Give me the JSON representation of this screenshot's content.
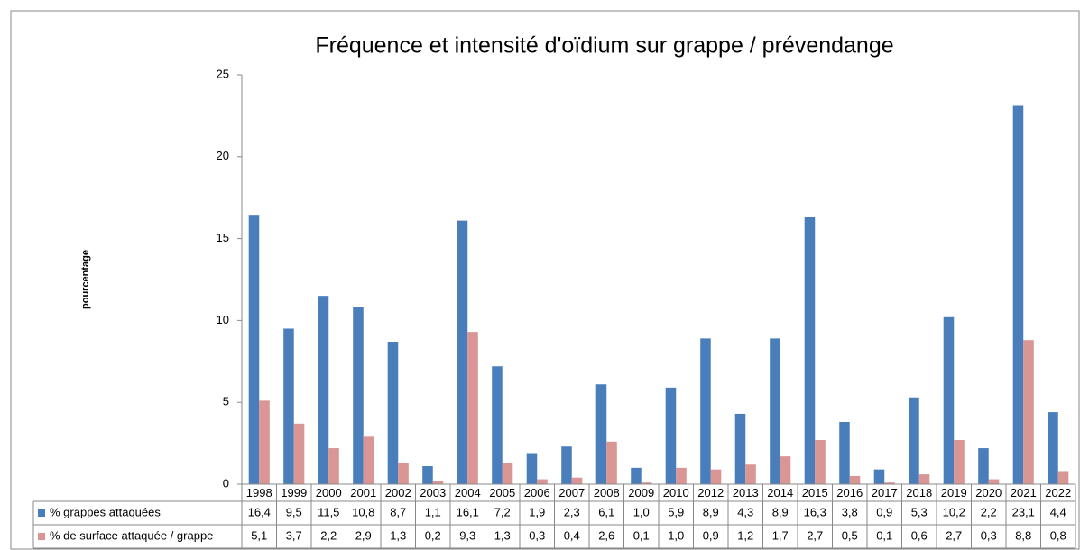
{
  "chart_data": {
    "type": "bar",
    "title": "Fréquence et intensité d'oïdium sur grappe / prévendange",
    "y_label": "pourcentage",
    "categories": [
      "1998",
      "1999",
      "2000",
      "2001",
      "2002",
      "2003",
      "2004",
      "2005",
      "2006",
      "2007",
      "2008",
      "2009",
      "2010",
      "2012",
      "2013",
      "2014",
      "2015",
      "2016",
      "2017",
      "2018",
      "2019",
      "2020",
      "2021",
      "2022"
    ],
    "series": [
      {
        "name": "% grappes attaquées",
        "color": "#4a7ebb",
        "values": [
          16.4,
          9.5,
          11.5,
          10.8,
          8.7,
          1.1,
          16.1,
          7.2,
          1.9,
          2.3,
          6.1,
          1.0,
          5.9,
          8.9,
          4.3,
          8.9,
          16.3,
          3.8,
          0.9,
          5.3,
          10.2,
          2.2,
          23.1,
          4.4
        ],
        "value_labels": [
          "16,4",
          "9,5",
          "11,5",
          "10,8",
          "8,7",
          "1,1",
          "16,1",
          "7,2",
          "1,9",
          "2,3",
          "6,1",
          "1,0",
          "5,9",
          "8,9",
          "4,3",
          "8,9",
          "16,3",
          "3,8",
          "0,9",
          "5,3",
          "10,2",
          "2,2",
          "23,1",
          "4,4"
        ]
      },
      {
        "name": "% de surface attaquée / grappe",
        "color": "#d99694",
        "values": [
          5.1,
          3.7,
          2.2,
          2.9,
          1.3,
          0.2,
          9.3,
          1.3,
          0.3,
          0.4,
          2.6,
          0.1,
          1.0,
          0.9,
          1.2,
          1.7,
          2.7,
          0.5,
          0.1,
          0.6,
          2.7,
          0.3,
          8.8,
          0.8
        ],
        "value_labels": [
          "5,1",
          "3,7",
          "2,2",
          "2,9",
          "1,3",
          "0,2",
          "9,3",
          "1,3",
          "0,3",
          "0,4",
          "2,6",
          "0,1",
          "1,0",
          "0,9",
          "1,2",
          "1,7",
          "2,7",
          "0,5",
          "0,1",
          "0,6",
          "2,7",
          "0,3",
          "8,8",
          "0,8"
        ]
      }
    ],
    "ylim": [
      0,
      25
    ],
    "yticks": [
      0,
      5,
      10,
      15,
      20,
      25
    ],
    "grid": false
  }
}
